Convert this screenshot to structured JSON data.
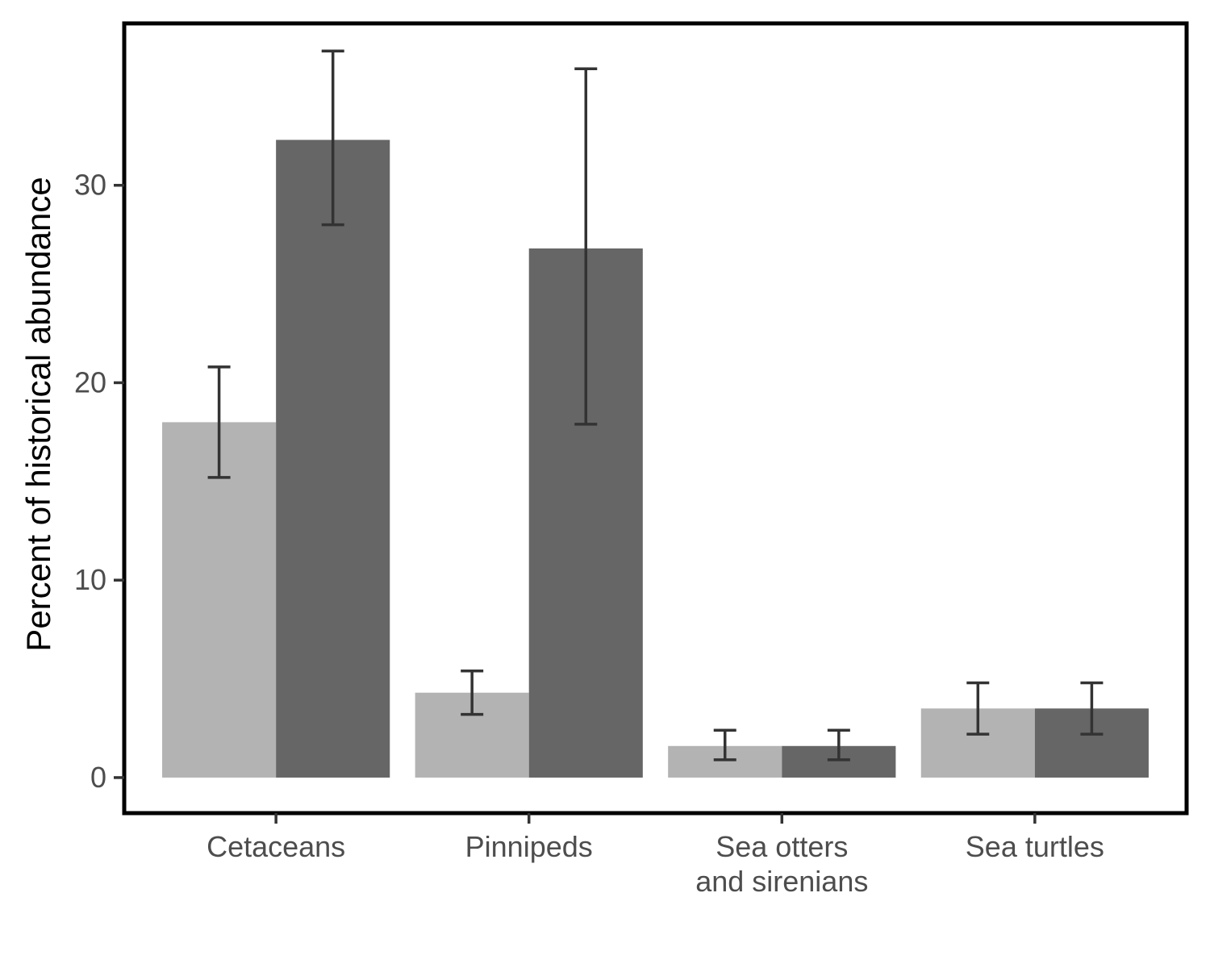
{
  "chart_data": {
    "type": "bar",
    "title": "",
    "xlabel": "",
    "ylabel": "Percent of historical abundance",
    "ylim": [
      -1.8,
      38.2
    ],
    "yticks": [
      0,
      10,
      20,
      30
    ],
    "grid": false,
    "legend": "none",
    "categories": [
      [
        "Cetaceans"
      ],
      [
        "Pinnipeds"
      ],
      [
        "Sea otters",
        "and sirenians"
      ],
      [
        "Sea turtles"
      ]
    ],
    "series": [
      {
        "color": "#b3b3b3",
        "values": [
          18.0,
          4.3,
          1.6,
          3.5
        ],
        "error_low": [
          15.2,
          3.2,
          0.9,
          2.2
        ],
        "error_high": [
          20.8,
          5.4,
          2.4,
          4.8
        ]
      },
      {
        "color": "#666666",
        "values": [
          32.3,
          26.8,
          1.6,
          3.5
        ],
        "error_low": [
          28.0,
          17.9,
          0.9,
          2.2
        ],
        "error_high": [
          36.8,
          35.9,
          2.4,
          4.8
        ]
      }
    ],
    "errorbar_color": "#333333",
    "frame_color": "#000000"
  }
}
